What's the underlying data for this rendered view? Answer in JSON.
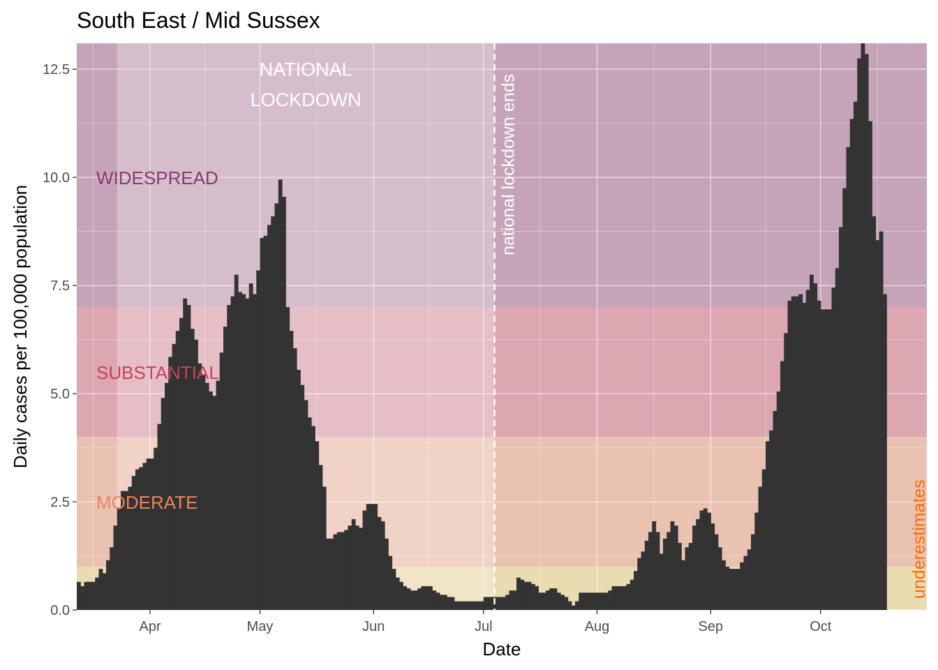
{
  "chart_data": {
    "type": "bar",
    "title": "South East / Mid Sussex",
    "xlabel": "Date",
    "ylabel": "Daily cases per 100,000 population",
    "ylim": [
      0,
      13.1
    ],
    "x_range": [
      "2020-03-12",
      "2020-10-30"
    ],
    "x_ticks": [
      {
        "date": "2020-04-01",
        "label": "Apr"
      },
      {
        "date": "2020-05-01",
        "label": "May"
      },
      {
        "date": "2020-06-01",
        "label": "Jun"
      },
      {
        "date": "2020-07-01",
        "label": "Jul"
      },
      {
        "date": "2020-08-01",
        "label": "Aug"
      },
      {
        "date": "2020-09-01",
        "label": "Sep"
      },
      {
        "date": "2020-10-01",
        "label": "Oct"
      }
    ],
    "y_ticks": [
      {
        "value": 0,
        "label": "0.0"
      },
      {
        "value": 2.5,
        "label": "2.5"
      },
      {
        "value": 5,
        "label": "5.0"
      },
      {
        "value": 7.5,
        "label": "7.5"
      },
      {
        "value": 10,
        "label": "10.0"
      },
      {
        "value": 12.5,
        "label": "12.5"
      }
    ],
    "grid": true,
    "legend": "none",
    "series": [
      {
        "start_date": "2020-03-12",
        "color": "#333333",
        "values": [
          0.65,
          0.55,
          0.65,
          0.65,
          0.65,
          0.75,
          0.95,
          0.85,
          1.15,
          1.45,
          1.95,
          2.35,
          2.75,
          2.75,
          2.85,
          3.1,
          3.25,
          3.3,
          3.4,
          3.5,
          3.5,
          3.75,
          4.3,
          4.9,
          5.25,
          5.85,
          6.15,
          6.45,
          6.75,
          7.2,
          7.05,
          6.5,
          6.25,
          5.7,
          5.45,
          5.25,
          5.05,
          4.95,
          5.3,
          5.95,
          6.55,
          7.05,
          7.25,
          7.75,
          7.35,
          7.3,
          7.2,
          7.55,
          7.3,
          7.85,
          8.6,
          8.65,
          8.9,
          9.1,
          9.4,
          9.95,
          9.55,
          7.0,
          6.45,
          6.05,
          5.55,
          5.2,
          4.85,
          4.45,
          4.25,
          3.9,
          3.35,
          2.85,
          1.65,
          1.65,
          1.75,
          1.8,
          1.8,
          1.85,
          1.95,
          2.1,
          1.95,
          1.9,
          2.3,
          2.45,
          2.45,
          2.45,
          2.15,
          2.05,
          1.65,
          1.25,
          0.95,
          0.75,
          0.65,
          0.55,
          0.5,
          0.45,
          0.45,
          0.5,
          0.55,
          0.55,
          0.55,
          0.45,
          0.4,
          0.35,
          0.35,
          0.3,
          0.3,
          0.2,
          0.2,
          0.2,
          0.2,
          0.2,
          0.2,
          0.2,
          0.2,
          0.3,
          0.3,
          0.3,
          0.3,
          0.3,
          0.3,
          0.35,
          0.45,
          0.45,
          0.75,
          0.7,
          0.65,
          0.65,
          0.6,
          0.55,
          0.4,
          0.4,
          0.45,
          0.5,
          0.5,
          0.4,
          0.35,
          0.3,
          0.2,
          0.1,
          0.2,
          0.4,
          0.4,
          0.4,
          0.4,
          0.4,
          0.4,
          0.4,
          0.4,
          0.45,
          0.55,
          0.55,
          0.55,
          0.55,
          0.6,
          0.7,
          0.9,
          1.2,
          1.35,
          1.6,
          1.8,
          2.05,
          1.8,
          1.3,
          1.65,
          1.8,
          2.05,
          1.95,
          1.55,
          1.15,
          1.45,
          1.55,
          1.95,
          2.1,
          2.3,
          2.35,
          2.25,
          2.0,
          1.75,
          1.45,
          1.15,
          1.0,
          0.95,
          0.95,
          0.95,
          1.1,
          1.25,
          1.4,
          1.75,
          2.25,
          2.85,
          3.25,
          3.9,
          4.15,
          4.6,
          5.05,
          5.75,
          6.4,
          7.15,
          7.25,
          7.25,
          7.3,
          7.1,
          7.4,
          7.75,
          7.55,
          7.15,
          6.95,
          6.95,
          6.95,
          7.45,
          7.9,
          8.85,
          9.75,
          10.7,
          11.35,
          11.75,
          12.75,
          13.1,
          12.85,
          11.3,
          9.1,
          8.55,
          8.75,
          7.3
        ]
      }
    ],
    "bands": [
      {
        "label": "WIDESPREAD",
        "from": 7,
        "to": 13.1,
        "color": "#8b3a6e"
      },
      {
        "label": "SUBSTANTIAL",
        "from": 4,
        "to": 7,
        "color": "#c7405b"
      },
      {
        "label": "MODERATE",
        "from": 1,
        "to": 4,
        "color": "#e8845a"
      },
      {
        "label": "",
        "from": 0,
        "to": 1,
        "color": "#e9c45a"
      }
    ],
    "lockdown": {
      "label_line1": "NATIONAL",
      "label_line2": "LOCKDOWN",
      "from": "2020-03-23",
      "to": "2020-07-04"
    },
    "reference_line": {
      "date": "2020-07-04",
      "label": "national lockdown ends"
    },
    "annotation": {
      "label": "underestimates",
      "color": "#ff6a00",
      "from": "2020-10-26"
    }
  }
}
